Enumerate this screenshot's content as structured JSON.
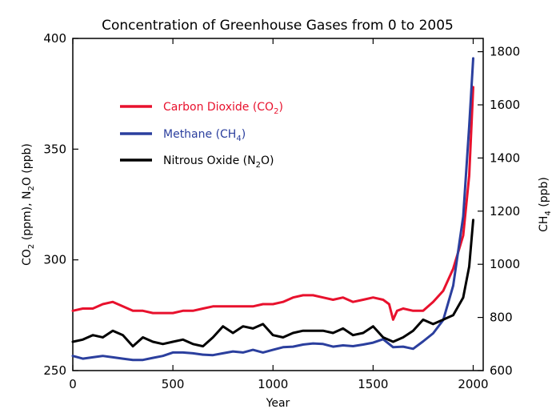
{
  "chart_data": {
    "type": "line",
    "title": "Concentration of Greenhouse Gases from 0 to 2005",
    "xlabel": "Year",
    "ylabel_left": {
      "pre": "CO",
      "sub1": "2",
      "mid": " (ppm), N",
      "sub2": "2",
      "post": "O (ppb)"
    },
    "ylabel_right": {
      "pre": "CH",
      "sub1": "4",
      "post": " (ppb)"
    },
    "xlim": [
      0,
      2050
    ],
    "ylim_left": [
      250,
      400
    ],
    "ylim_right": [
      600,
      1850
    ],
    "x_ticks": [
      0,
      500,
      1000,
      1500,
      2000
    ],
    "y_ticks_left": [
      250,
      300,
      350,
      400
    ],
    "y_ticks_right": [
      600,
      800,
      1000,
      1200,
      1400,
      1600,
      1800
    ],
    "grid": false,
    "legend_position": "upper-left",
    "series": [
      {
        "key": "co2",
        "name": {
          "pre": "Carbon Dioxide (CO",
          "sub": "2",
          "post": ")"
        },
        "color": "#e8112d",
        "axis": "left",
        "x": [
          0,
          50,
          100,
          150,
          200,
          250,
          300,
          350,
          400,
          450,
          500,
          550,
          600,
          650,
          700,
          750,
          800,
          850,
          900,
          950,
          1000,
          1050,
          1100,
          1150,
          1200,
          1250,
          1300,
          1350,
          1400,
          1450,
          1500,
          1550,
          1580,
          1600,
          1620,
          1650,
          1700,
          1750,
          1800,
          1850,
          1900,
          1950,
          1980,
          2000
        ],
        "y": [
          277,
          278,
          278,
          280,
          281,
          279,
          277,
          277,
          276,
          276,
          276,
          277,
          277,
          278,
          279,
          279,
          279,
          279,
          279,
          280,
          280,
          281,
          283,
          284,
          284,
          283,
          282,
          283,
          281,
          282,
          283,
          282,
          280,
          273,
          277,
          278,
          277,
          277,
          281,
          286,
          296,
          311,
          338,
          378
        ]
      },
      {
        "key": "ch4",
        "name": {
          "pre": "Methane (CH",
          "sub": "4",
          "post": ")"
        },
        "color": "#2b3f9e",
        "axis": "right",
        "x": [
          0,
          50,
          100,
          150,
          200,
          250,
          300,
          350,
          400,
          450,
          500,
          550,
          600,
          650,
          700,
          750,
          800,
          850,
          900,
          950,
          1000,
          1050,
          1100,
          1150,
          1200,
          1250,
          1300,
          1350,
          1400,
          1450,
          1500,
          1550,
          1600,
          1650,
          1700,
          1750,
          1800,
          1850,
          1900,
          1950,
          1980,
          2000
        ],
        "y": [
          655,
          645,
          650,
          655,
          650,
          645,
          640,
          640,
          648,
          655,
          668,
          668,
          665,
          660,
          658,
          665,
          672,
          668,
          678,
          668,
          678,
          688,
          690,
          698,
          702,
          700,
          690,
          695,
          692,
          698,
          705,
          718,
          688,
          690,
          682,
          710,
          740,
          790,
          920,
          1180,
          1520,
          1775
        ]
      },
      {
        "key": "n2o",
        "name": {
          "pre": "Nitrous Oxide (N",
          "sub": "2",
          "post": "O)"
        },
        "color": "#000000",
        "axis": "left",
        "x": [
          0,
          50,
          100,
          150,
          200,
          250,
          300,
          350,
          400,
          450,
          500,
          550,
          600,
          650,
          700,
          750,
          800,
          850,
          900,
          950,
          1000,
          1050,
          1100,
          1150,
          1200,
          1250,
          1300,
          1350,
          1400,
          1450,
          1500,
          1550,
          1600,
          1650,
          1700,
          1750,
          1800,
          1850,
          1900,
          1950,
          1980,
          2000
        ],
        "y": [
          263,
          264,
          266,
          265,
          268,
          266,
          261,
          265,
          263,
          262,
          263,
          264,
          262,
          261,
          265,
          270,
          267,
          270,
          269,
          271,
          266,
          265,
          267,
          268,
          268,
          268,
          267,
          269,
          266,
          267,
          270,
          265,
          263,
          265,
          268,
          273,
          271,
          273,
          275,
          283,
          297,
          318
        ]
      }
    ]
  }
}
